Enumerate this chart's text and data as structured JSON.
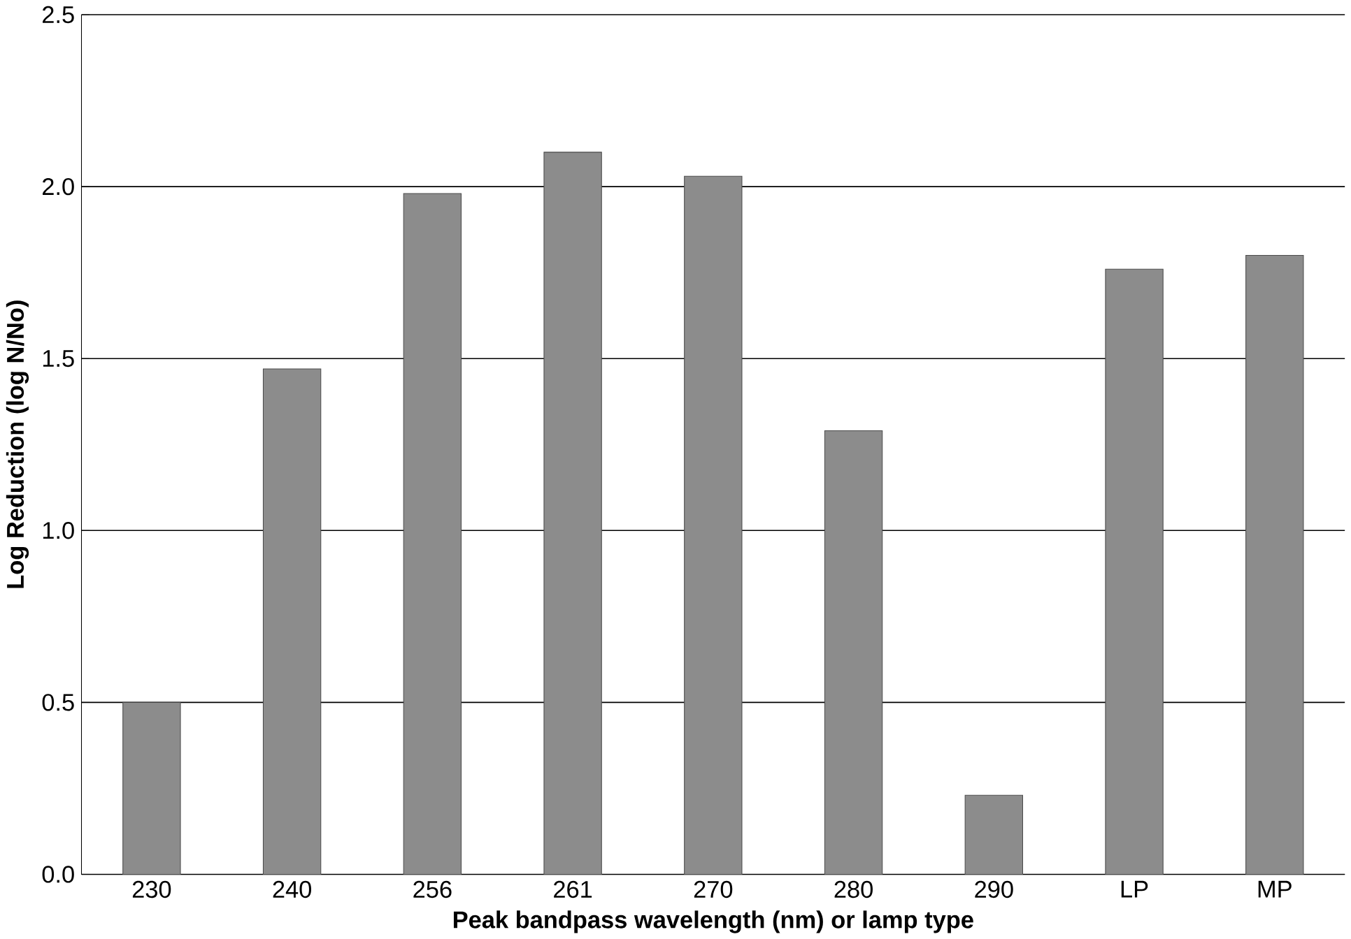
{
  "chart_data": {
    "type": "bar",
    "xlabel": "Peak bandpass wavelength (nm) or lamp type",
    "ylabel": "Log Reduction (log N/No)",
    "categories": [
      "230",
      "240",
      "256",
      "261",
      "270",
      "280",
      "290",
      "LP",
      "MP"
    ],
    "values": [
      0.5,
      1.47,
      1.98,
      2.1,
      2.03,
      1.29,
      0.23,
      1.76,
      1.8
    ],
    "color": "#8c8c8c",
    "ylim": [
      0,
      2.5
    ],
    "yticks": [
      {
        "value": 0,
        "label": "0.0"
      },
      {
        "value": 0.5,
        "label": "0.5"
      },
      {
        "value": 1,
        "label": "1.0"
      },
      {
        "value": 1.5,
        "label": "1.5"
      },
      {
        "value": 2,
        "label": "2.0"
      },
      {
        "value": 2.5,
        "label": "2.5"
      }
    ],
    "grid": "y"
  }
}
